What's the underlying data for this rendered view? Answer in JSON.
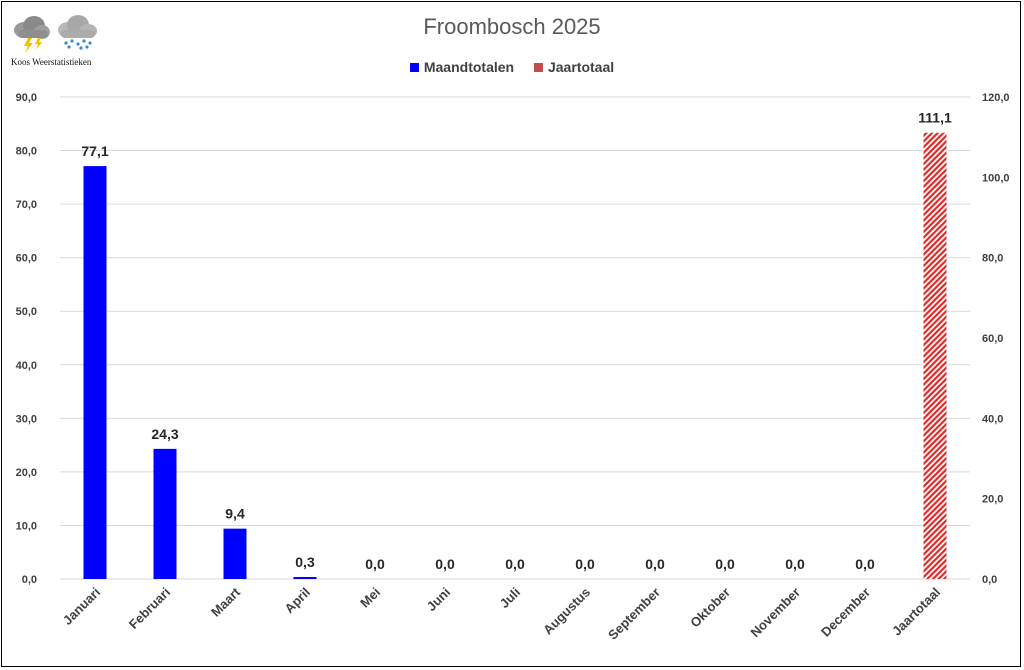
{
  "logo": {
    "caption": "Koos Weerstatistieken"
  },
  "chart_data": {
    "type": "bar",
    "title": "Froombosch 2025",
    "categories": [
      "Januari",
      "Februari",
      "Maart",
      "April",
      "Mei",
      "Juni",
      "Juli",
      "Augustus",
      "September",
      "Oktober",
      "November",
      "December",
      "Jaartotaal"
    ],
    "series": [
      {
        "name": "Maandtotalen",
        "axis": "left",
        "color": "#0000ff",
        "values": [
          77.1,
          24.3,
          9.4,
          0.3,
          0.0,
          0.0,
          0.0,
          0.0,
          0.0,
          0.0,
          0.0,
          0.0,
          null
        ],
        "labels": [
          "77,1",
          "24,3",
          "9,4",
          "0,3",
          "0,0",
          "0,0",
          "0,0",
          "0,0",
          "0,0",
          "0,0",
          "0,0",
          "0,0",
          null
        ]
      },
      {
        "name": "Jaartotaal",
        "axis": "right",
        "color": "#e02a2a",
        "pattern": "hatched",
        "values": [
          null,
          null,
          null,
          null,
          null,
          null,
          null,
          null,
          null,
          null,
          null,
          null,
          111.1
        ],
        "labels": [
          null,
          null,
          null,
          null,
          null,
          null,
          null,
          null,
          null,
          null,
          null,
          null,
          "111,1"
        ]
      }
    ],
    "y_left": {
      "min": 0,
      "max": 90,
      "ticks": [
        "0,0",
        "10,0",
        "20,0",
        "30,0",
        "40,0",
        "50,0",
        "60,0",
        "70,0",
        "80,0",
        "90,0"
      ]
    },
    "y_right": {
      "min": 0,
      "max": 120,
      "ticks": [
        "0,0",
        "20,0",
        "40,0",
        "60,0",
        "80,0",
        "100,0",
        "120,0"
      ]
    },
    "grid": true,
    "legend_position": "top-center",
    "x_tick_rotation": "diagonal"
  }
}
